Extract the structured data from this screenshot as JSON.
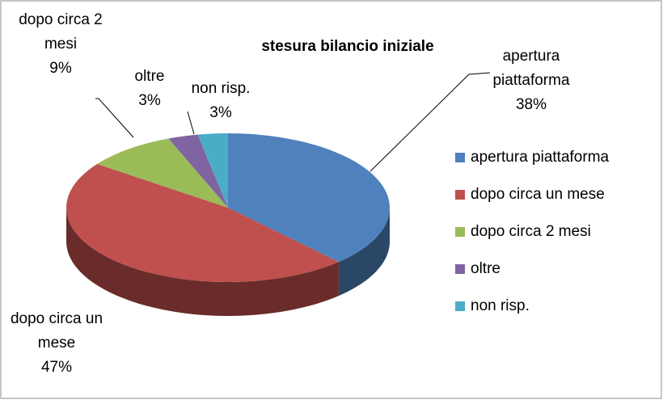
{
  "chart_data": {
    "type": "pie3d",
    "title": "stesura bilancio iniziale",
    "categories": [
      "apertura piattaforma",
      "dopo circa un mese",
      "dopo circa 2 mesi",
      "oltre",
      "non risp."
    ],
    "values": [
      38,
      47,
      9,
      3,
      3
    ],
    "value_labels": [
      "38%",
      "47%",
      "9%",
      "3%",
      "3%"
    ],
    "colors": [
      "#4f81bd",
      "#c0504d",
      "#9bbb59",
      "#8064a2",
      "#4bacc6"
    ],
    "legend": "right"
  }
}
